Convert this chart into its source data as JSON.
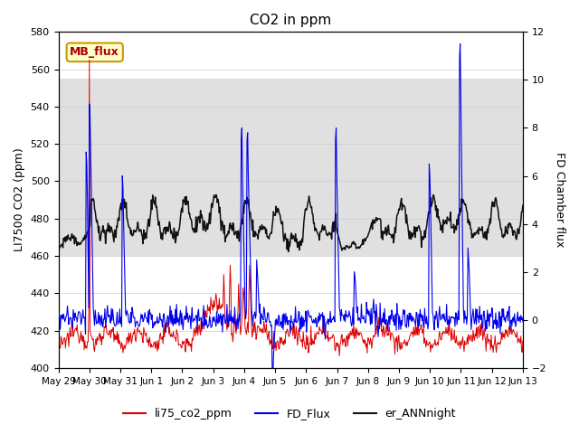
{
  "title": "CO2 in ppm",
  "ylabel_left": "LI7500 CO2 (ppm)",
  "ylabel_right": "FD Chamber flux",
  "ylim_left": [
    400,
    580
  ],
  "ylim_right": [
    -2,
    12
  ],
  "shade_band": [
    460,
    555
  ],
  "background_color": "#ffffff",
  "shade_color": "#e0e0e0",
  "line_colors": {
    "red": "#dd0000",
    "blue": "#0000ee",
    "black": "#111111"
  },
  "legend_labels": [
    "li75_co2_ppm",
    "FD_Flux",
    "er_ANNnight"
  ],
  "mb_flux_label": "MB_flux",
  "mb_flux_bg": "#ffffcc",
  "mb_flux_border": "#cc9900",
  "xtick_labels": [
    "May 29",
    "May 30",
    "May 31",
    "Jun 1",
    "Jun 2",
    "Jun 3",
    "Jun 4",
    "Jun 5",
    "Jun 6",
    "Jun 7",
    "Jun 8",
    "Jun 9",
    "Jun 10",
    "Jun 11",
    "Jun 12",
    "Jun 13"
  ],
  "xtick_positions": [
    0,
    48,
    96,
    144,
    192,
    240,
    288,
    336,
    384,
    432,
    480,
    528,
    576,
    624,
    672,
    720
  ]
}
